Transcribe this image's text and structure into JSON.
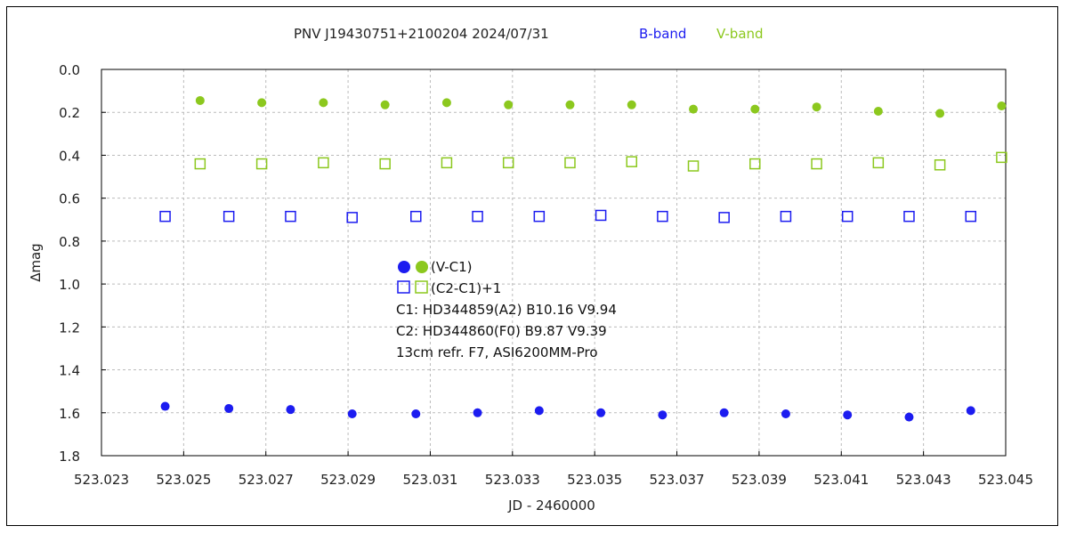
{
  "chart_data": {
    "type": "scatter",
    "title": "PNV J19430751+2100204   2024/07/31",
    "band_labels": [
      {
        "name": "B-band",
        "color": "#1c1cf0"
      },
      {
        "name": "V-band",
        "color": "#8cc81e"
      }
    ],
    "xlabel": "JD - 2460000",
    "ylabel": "∆mag",
    "xlim": [
      523.023,
      523.045
    ],
    "ylim": [
      0.0,
      1.8
    ],
    "y_inverted": true,
    "grid": true,
    "x_ticks": [
      "523.023",
      "523.025",
      "523.027",
      "523.029",
      "523.031",
      "523.033",
      "523.035",
      "523.037",
      "523.039",
      "523.041",
      "523.043",
      "523.045"
    ],
    "y_ticks": [
      "0.0",
      "0.2",
      "0.4",
      "0.6",
      "0.8",
      "1.0",
      "1.2",
      "1.4",
      "1.6",
      "1.8"
    ],
    "series": [
      {
        "band": "V",
        "kind": "V-C1",
        "marker": "filled-circle",
        "color": "#8cc81e",
        "x": [
          523.0254,
          523.0269,
          523.0284,
          523.0299,
          523.0314,
          523.0329,
          523.0344,
          523.0359,
          523.0374,
          523.0389,
          523.0404,
          523.0419,
          523.0434,
          523.0449
        ],
        "y": [
          0.145,
          0.155,
          0.155,
          0.165,
          0.155,
          0.165,
          0.165,
          0.165,
          0.185,
          0.185,
          0.175,
          0.195,
          0.205,
          0.17
        ]
      },
      {
        "band": "V",
        "kind": "(C2-C1)+1",
        "marker": "open-square",
        "color": "#8cc81e",
        "x": [
          523.0254,
          523.0269,
          523.0284,
          523.0299,
          523.0314,
          523.0329,
          523.0344,
          523.0359,
          523.0374,
          523.0389,
          523.0404,
          523.0419,
          523.0434,
          523.0449
        ],
        "y": [
          0.44,
          0.44,
          0.435,
          0.44,
          0.435,
          0.435,
          0.435,
          0.43,
          0.45,
          0.44,
          0.44,
          0.435,
          0.445,
          0.41
        ]
      },
      {
        "band": "B",
        "kind": "(C2-C1)+1",
        "marker": "open-square",
        "color": "#1c1cf0",
        "x": [
          523.02455,
          523.0261,
          523.0276,
          523.0291,
          523.03065,
          523.03215,
          523.03365,
          523.03515,
          523.03665,
          523.03815,
          523.03965,
          523.04115,
          523.04265,
          523.04415
        ],
        "y": [
          0.685,
          0.685,
          0.685,
          0.69,
          0.685,
          0.685,
          0.685,
          0.68,
          0.685,
          0.69,
          0.685,
          0.685,
          0.685,
          0.685
        ]
      },
      {
        "band": "B",
        "kind": "V-C1",
        "marker": "filled-circle",
        "color": "#1c1cf0",
        "x": [
          523.02455,
          523.0261,
          523.0276,
          523.0291,
          523.03065,
          523.03215,
          523.03365,
          523.03515,
          523.03665,
          523.03815,
          523.03965,
          523.04115,
          523.04265,
          523.04415
        ],
        "y": [
          1.57,
          1.58,
          1.585,
          1.605,
          1.605,
          1.6,
          1.59,
          1.6,
          1.61,
          1.6,
          1.605,
          1.61,
          1.62,
          1.59
        ]
      }
    ],
    "notes": {
      "legend_vc1": "(V-C1)",
      "legend_c2c1": "(C2-C1)+1",
      "c1": "C1: HD344859(A2)  B10.16  V9.94",
      "c2": "C2: HD344860(F0)  B9.87  V9.39",
      "instrument": "13cm refr. F7,  ASI6200MM-Pro"
    },
    "colors": {
      "b": "#1c1cf0",
      "v": "#8cc81e",
      "grid": "#bbbbbb",
      "axis": "#000000"
    }
  }
}
